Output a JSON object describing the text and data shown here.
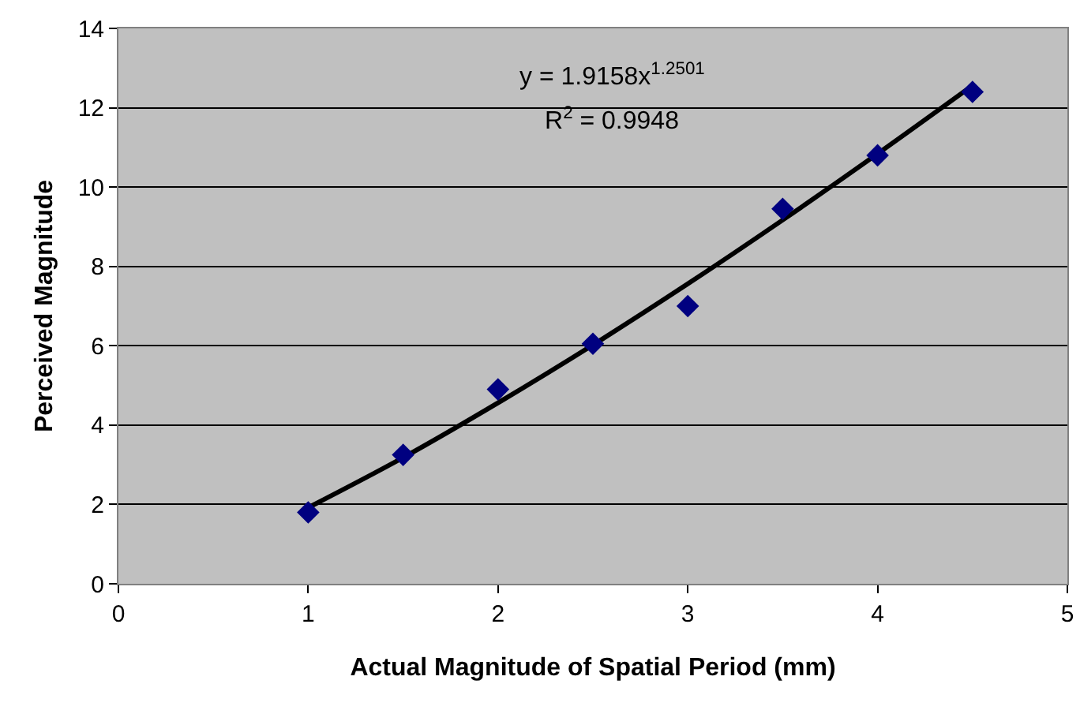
{
  "chart_data": {
    "type": "scatter",
    "xlabel": "Actual Magnitude of Spatial Period (mm)",
    "ylabel": "Perceived Magnitude",
    "x": [
      1,
      1.5,
      2,
      2.5,
      3,
      3.5,
      4,
      4.5
    ],
    "series": [
      {
        "color": "#000080",
        "marker": "diamond",
        "values": [
          1.8,
          3.25,
          4.9,
          6.05,
          7.0,
          9.45,
          10.8,
          12.4
        ]
      },
      {
        "type": "line",
        "color": "#000000",
        "marker": "none",
        "x": [
          1,
          1.5,
          2,
          2.5,
          3,
          3.5,
          4,
          4.5
        ],
        "values": [
          1.92,
          3.18,
          4.56,
          6.02,
          7.56,
          9.17,
          10.84,
          12.56
        ]
      }
    ],
    "annotations": [
      "y = 1.9158x$^{1.2501}$",
      "R$^{2}$ = 0.9948"
    ],
    "xlim": [
      0,
      5
    ],
    "xticks": [
      0,
      1,
      2,
      3,
      4,
      5
    ],
    "ylim": [
      0,
      14
    ],
    "yticks": [
      0,
      2,
      4,
      6,
      8,
      10,
      12,
      14
    ],
    "grid": "y"
  }
}
